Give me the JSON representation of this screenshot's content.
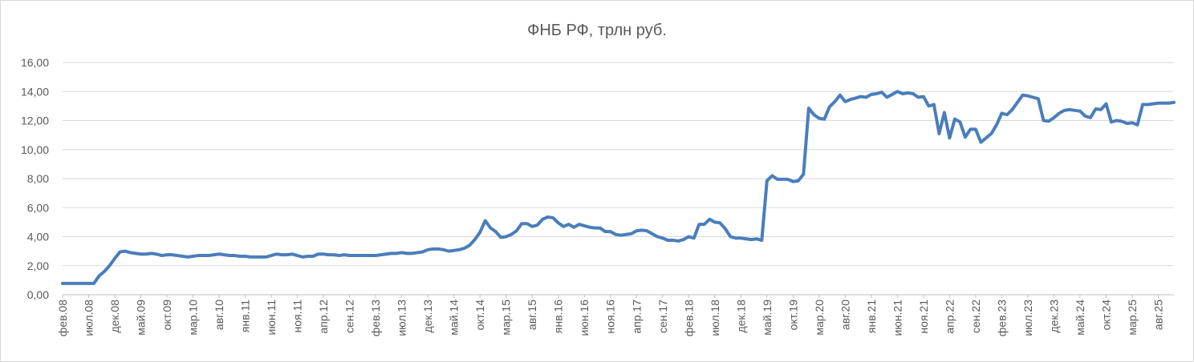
{
  "chart_data": {
    "type": "line",
    "title": "ФНБ РФ, трлн руб.",
    "xlabel": "",
    "ylabel": "",
    "ylim": [
      0,
      16
    ],
    "y_ticks": [
      "0,00",
      "2,00",
      "4,00",
      "6,00",
      "8,00",
      "10,00",
      "12,00",
      "14,00",
      "16,00"
    ],
    "x_tick_labels": [
      "фев.08",
      "июл.08",
      "дек.08",
      "май.09",
      "окт.09",
      "мар.10",
      "авг.10",
      "янв.11",
      "июн.11",
      "ноя.11",
      "апр.12",
      "сен.12",
      "фев.13",
      "июл.13",
      "дек.13",
      "май.14",
      "окт.14",
      "мар.15",
      "авг.15",
      "янв.16",
      "июн.16",
      "ноя.16",
      "апр.17",
      "сен.17",
      "фев.18",
      "июл.18",
      "дек.18",
      "май.19",
      "окт.19",
      "мар.20",
      "авг.20",
      "янв.21",
      "июн.21",
      "ноя.21",
      "апр.22",
      "сен.22",
      "фев.23",
      "июл.23",
      "дек.23",
      "май.24",
      "окт.24",
      "мар.25",
      "авг.25"
    ],
    "grid": true,
    "legend": "none",
    "series_color": "#4a7ebb",
    "series": [
      {
        "start": "фев.08",
        "frequency": "monthly",
        "values": [
          0.78,
          0.78,
          0.78,
          0.78,
          0.78,
          0.78,
          0.78,
          1.3,
          1.6,
          2.0,
          2.5,
          2.95,
          3.0,
          2.9,
          2.85,
          2.8,
          2.8,
          2.85,
          2.8,
          2.7,
          2.75,
          2.75,
          2.7,
          2.65,
          2.6,
          2.65,
          2.7,
          2.7,
          2.7,
          2.75,
          2.8,
          2.75,
          2.7,
          2.7,
          2.65,
          2.65,
          2.6,
          2.6,
          2.6,
          2.6,
          2.7,
          2.8,
          2.75,
          2.75,
          2.8,
          2.7,
          2.6,
          2.65,
          2.65,
          2.8,
          2.8,
          2.75,
          2.75,
          2.7,
          2.75,
          2.7,
          2.7,
          2.7,
          2.7,
          2.7,
          2.7,
          2.75,
          2.8,
          2.85,
          2.85,
          2.9,
          2.85,
          2.85,
          2.9,
          2.95,
          3.1,
          3.15,
          3.15,
          3.1,
          3.0,
          3.05,
          3.1,
          3.2,
          3.4,
          3.8,
          4.3,
          5.1,
          4.6,
          4.35,
          3.95,
          4.0,
          4.15,
          4.4,
          4.9,
          4.9,
          4.7,
          4.8,
          5.2,
          5.35,
          5.3,
          4.95,
          4.7,
          4.85,
          4.65,
          4.85,
          4.75,
          4.65,
          4.6,
          4.6,
          4.35,
          4.35,
          4.15,
          4.1,
          4.15,
          4.2,
          4.4,
          4.45,
          4.4,
          4.2,
          4.0,
          3.9,
          3.75,
          3.75,
          3.7,
          3.8,
          4.0,
          3.9,
          4.85,
          4.85,
          5.2,
          5.0,
          4.95,
          4.55,
          4.0,
          3.9,
          3.9,
          3.85,
          3.8,
          3.85,
          3.75,
          7.85,
          8.2,
          7.95,
          7.95,
          7.95,
          7.8,
          7.85,
          8.3,
          12.85,
          12.4,
          12.15,
          12.1,
          12.95,
          13.3,
          13.75,
          13.3,
          13.45,
          13.55,
          13.65,
          13.6,
          13.8,
          13.85,
          13.95,
          13.6,
          13.8,
          14.0,
          13.85,
          13.9,
          13.85,
          13.6,
          13.65,
          13.0,
          13.1,
          11.1,
          12.55,
          10.8,
          12.1,
          11.9,
          10.85,
          11.4,
          11.4,
          10.5,
          10.8,
          11.1,
          11.7,
          12.5,
          12.4,
          12.75,
          13.25,
          13.75,
          13.7,
          13.6,
          13.5,
          12.0,
          11.95,
          12.2,
          12.5,
          12.7,
          12.75,
          12.7,
          12.65,
          12.3,
          12.2,
          12.8,
          12.75,
          13.15,
          11.9,
          12.0,
          11.95,
          11.8,
          11.85,
          11.7,
          13.1,
          13.1,
          13.15,
          13.2,
          13.2,
          13.2,
          13.25
        ]
      }
    ]
  }
}
